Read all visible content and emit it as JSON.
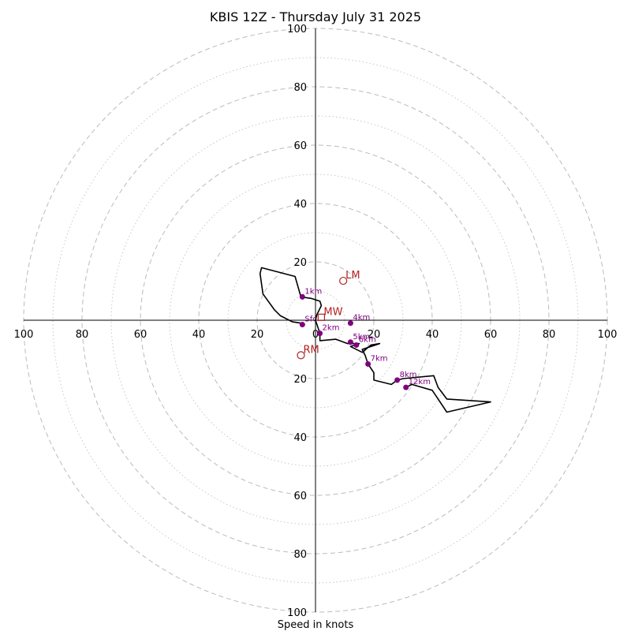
{
  "chart_data": {
    "type": "hodograph",
    "title": "KBIS 12Z - Thursday July 31 2025",
    "xlabel": "Speed in knots",
    "ylabel": "",
    "xlim": [
      -100,
      100
    ],
    "ylim": [
      -100,
      100
    ],
    "rings": {
      "major": [
        20,
        40,
        60,
        80,
        100
      ],
      "minor": [
        10,
        30,
        50,
        70,
        90
      ]
    },
    "x_ticks": [
      100,
      80,
      60,
      40,
      20,
      0,
      20,
      40,
      60,
      80,
      100
    ],
    "y_ticks": [
      100,
      80,
      60,
      40,
      20,
      0,
      20,
      40,
      60,
      80,
      100
    ],
    "hodograph_trace": [
      [
        -5,
        -1
      ],
      [
        -8,
        -0.5
      ],
      [
        -12,
        1.5
      ],
      [
        -14,
        3.5
      ],
      [
        -18,
        9
      ],
      [
        -19,
        16
      ],
      [
        -18.5,
        18
      ],
      [
        -7,
        15
      ],
      [
        -5,
        8
      ],
      [
        -1.5,
        7.5
      ],
      [
        1.5,
        6.5
      ],
      [
        2,
        5
      ],
      [
        0.5,
        2
      ],
      [
        0,
        0
      ],
      [
        1.5,
        -4.5
      ],
      [
        1.5,
        -7
      ],
      [
        7,
        -6.5
      ],
      [
        11,
        -8
      ],
      [
        15,
        -8
      ],
      [
        12,
        -9
      ],
      [
        16,
        -11
      ],
      [
        19,
        -8.5
      ],
      [
        22,
        -8
      ],
      [
        16,
        -10
      ],
      [
        17,
        -12
      ],
      [
        18,
        -15
      ],
      [
        20,
        -18
      ],
      [
        20,
        -20.5
      ],
      [
        26,
        -22
      ],
      [
        28,
        -20.5
      ],
      [
        30,
        -20
      ],
      [
        40.5,
        -19
      ],
      [
        42,
        -23
      ],
      [
        45,
        -27
      ],
      [
        60,
        -28
      ],
      [
        45,
        -31.5
      ],
      [
        40,
        -24
      ],
      [
        33,
        -22
      ],
      [
        31,
        -23
      ]
    ],
    "height_markers": [
      {
        "label": "Sfc",
        "u": -4.5,
        "v": -1.5
      },
      {
        "label": "1km",
        "u": -4.5,
        "v": 8
      },
      {
        "label": "2km",
        "u": 1.5,
        "v": -4.5
      },
      {
        "label": "4km",
        "u": 12,
        "v": -1
      },
      {
        "label": "5km",
        "u": 12,
        "v": -7.5
      },
      {
        "label": "6km",
        "u": 14,
        "v": -8.5
      },
      {
        "label": "7km",
        "u": 18,
        "v": -15
      },
      {
        "label": "8km",
        "u": 28,
        "v": -20.5
      },
      {
        "label": "12km",
        "u": 31,
        "v": -23
      }
    ],
    "storm_motions": [
      {
        "label": "LM",
        "u": 9.5,
        "v": 13.5,
        "marker": "circle"
      },
      {
        "label": "MW",
        "u": 2,
        "v": 1,
        "marker": "square"
      },
      {
        "label": "RM",
        "u": -5,
        "v": -12,
        "marker": "circle"
      }
    ],
    "colors": {
      "trace": "#000000",
      "height_markers": "#800080",
      "storm_motions": "#b22222",
      "rings": "#bbbbbb"
    },
    "grid": true,
    "legend": "none"
  }
}
